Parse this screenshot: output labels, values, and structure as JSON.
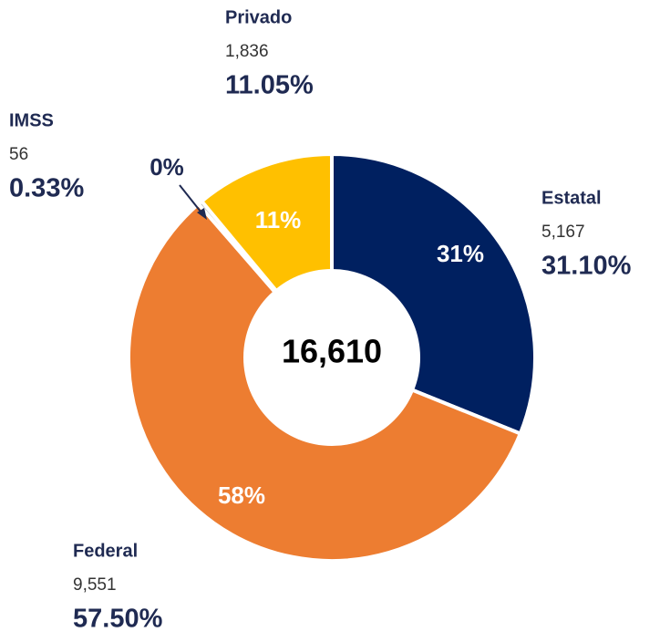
{
  "chart_data": {
    "type": "donut",
    "categories": [
      "Estatal",
      "Federal",
      "IMSS",
      "Privado"
    ],
    "series": [
      {
        "values": [
          5167,
          9551,
          56,
          1836
        ],
        "value_labels": [
          "5,167",
          "9,551",
          "56",
          "1,836"
        ],
        "colors": [
          "#002060",
          "#ed7d31",
          "#a5a5a5",
          "#ffc000"
        ]
      }
    ],
    "percent_labels": [
      "31.10%",
      "57.50%",
      "0.33%",
      "11.05%"
    ],
    "inner_labels": [
      "31%",
      "58%",
      "0%",
      "11%"
    ],
    "center_label": "16,610"
  }
}
